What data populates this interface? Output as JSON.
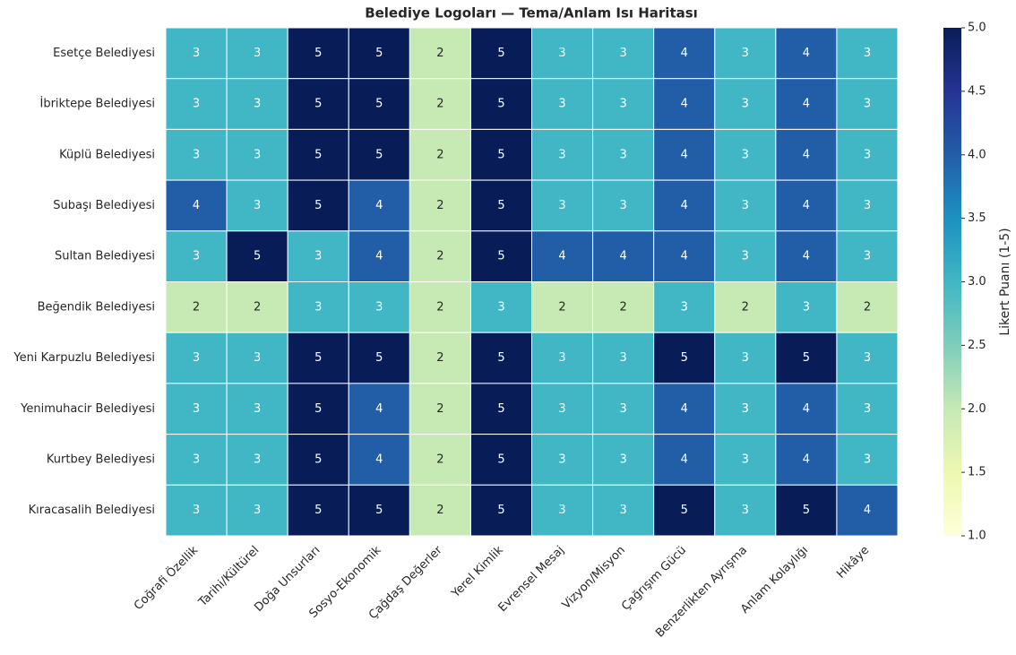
{
  "chart_data": {
    "type": "heatmap",
    "title": "Belediye Logoları — Tema/Anlam Isı Haritası",
    "colormap": "YlGnBu",
    "colorbar_label": "Likert Puanı (1-5)",
    "rows": [
      "Esetçe Belediyesi",
      "İbriktepe Belediyesi",
      "Küplü Belediyesi",
      "Subaşı Belediyesi",
      "Sultan Belediyesi",
      "Beğendik Belediyesi",
      "Yeni Karpuzlu Belediyesi",
      "Yenimuhacir Belediyesi",
      "Kurtbey Belediyesi",
      "Kıracasalih Belediyesi"
    ],
    "columns": [
      "Coğrafi Özellik",
      "Tarihi/Kültürel",
      "Doğa Unsurları",
      "Sosyo-Ekonomik",
      "Çağdaş Değerler",
      "Yerel Kimlik",
      "Evrensel Mesaj",
      "Vizyon/Misyon",
      "Çağrışım Gücü",
      "Benzerlikten Ayrışma",
      "Anlam Kolaylığı",
      "Hikâye"
    ],
    "values": [
      [
        3,
        3,
        5,
        5,
        2,
        5,
        3,
        3,
        4,
        3,
        4,
        3
      ],
      [
        3,
        3,
        5,
        5,
        2,
        5,
        3,
        3,
        4,
        3,
        4,
        3
      ],
      [
        3,
        3,
        5,
        5,
        2,
        5,
        3,
        3,
        4,
        3,
        4,
        3
      ],
      [
        4,
        3,
        5,
        4,
        2,
        5,
        3,
        3,
        4,
        3,
        4,
        3
      ],
      [
        3,
        5,
        3,
        4,
        2,
        5,
        4,
        4,
        4,
        3,
        4,
        3
      ],
      [
        2,
        2,
        3,
        3,
        2,
        3,
        2,
        2,
        3,
        2,
        3,
        2
      ],
      [
        3,
        3,
        5,
        5,
        2,
        5,
        3,
        3,
        5,
        3,
        5,
        3
      ],
      [
        3,
        3,
        5,
        4,
        2,
        5,
        3,
        3,
        4,
        3,
        4,
        3
      ],
      [
        3,
        3,
        5,
        4,
        2,
        5,
        3,
        3,
        4,
        3,
        4,
        3
      ],
      [
        3,
        3,
        5,
        5,
        2,
        5,
        3,
        3,
        5,
        3,
        5,
        4
      ]
    ],
    "clim": [
      1,
      5
    ],
    "cticks": [
      {
        "value": 1,
        "label": "1.0"
      },
      {
        "value": 1.5,
        "label": "1.5"
      },
      {
        "value": 2,
        "label": "2.0"
      },
      {
        "value": 2.5,
        "label": "2.5"
      },
      {
        "value": 3,
        "label": "3.0"
      },
      {
        "value": 3.5,
        "label": "3.5"
      },
      {
        "value": 4,
        "label": "4.0"
      },
      {
        "value": 4.5,
        "label": "4.5"
      },
      {
        "value": 5,
        "label": "5.0"
      }
    ]
  }
}
